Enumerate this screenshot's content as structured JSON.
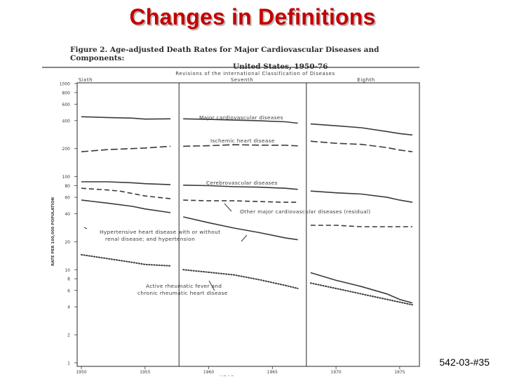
{
  "slide": {
    "title": "Changes in Definitions",
    "slide_number": "542-03-#35"
  },
  "figure": {
    "caption_line1": "Figure 2.  Age-adjusted Death Rates for Major Cardiovascular Diseases and Components:",
    "caption_line2": "United States, 1950-76"
  },
  "chart_data": {
    "type": "line",
    "title": "Figure 2. Age-adjusted Death Rates for Major Cardiovascular Diseases and Components: United States, 1950-76",
    "xlabel": "YEAR",
    "ylabel": "RATE PER 100,000 POPULATION",
    "yscale": "log",
    "ylim": [
      1,
      1000
    ],
    "xlim": [
      1950,
      1976
    ],
    "y_ticks": [
      "1000",
      "800",
      "600",
      "400",
      "200",
      "100",
      "80",
      "60",
      "40",
      "20",
      "10",
      "8",
      "6",
      "4",
      "2",
      "1"
    ],
    "y_tick_values": [
      1000,
      800,
      600,
      400,
      200,
      100,
      80,
      60,
      40,
      20,
      10,
      8,
      6,
      4,
      2,
      1
    ],
    "x_ticks": [
      "1950",
      "1955",
      "1960",
      "1965",
      "1970",
      "1975"
    ],
    "x_tick_values": [
      1950,
      1955,
      1960,
      1965,
      1970,
      1975
    ],
    "revisions_header": "Revisions of the International Classification of Diseases",
    "revisions": [
      {
        "label": "Sixth",
        "start": 1950,
        "end": 1958
      },
      {
        "label": "Seventh",
        "start": 1958,
        "end": 1968
      },
      {
        "label": "Eighth",
        "start": 1968,
        "end": 1976
      }
    ],
    "revision_boundaries": [
      1958,
      1968
    ],
    "grid": false,
    "series": [
      {
        "name": "Major cardiovascular diseases",
        "style": "solid",
        "segments": [
          [
            [
              1950,
              440
            ],
            [
              1952,
              432
            ],
            [
              1954,
              425
            ],
            [
              1955,
              415
            ],
            [
              1957,
              418
            ]
          ],
          [
            [
              1958,
              418
            ],
            [
              1960,
              412
            ],
            [
              1962,
              405
            ],
            [
              1964,
              398
            ],
            [
              1966,
              388
            ],
            [
              1967,
              375
            ]
          ],
          [
            [
              1968,
              368
            ],
            [
              1970,
              352
            ],
            [
              1972,
              335
            ],
            [
              1974,
              305
            ],
            [
              1975,
              290
            ],
            [
              1976,
              280
            ]
          ]
        ]
      },
      {
        "name": "Ischemic heart disease",
        "style": "longdash",
        "segments": [
          [
            [
              1950,
              185
            ],
            [
              1952,
              195
            ],
            [
              1954,
              200
            ],
            [
              1955,
              203
            ],
            [
              1957,
              212
            ]
          ],
          [
            [
              1958,
              212
            ],
            [
              1960,
              215
            ],
            [
              1962,
              220
            ],
            [
              1964,
              218
            ],
            [
              1966,
              217
            ],
            [
              1967,
              214
            ]
          ],
          [
            [
              1968,
              240
            ],
            [
              1970,
              228
            ],
            [
              1972,
              222
            ],
            [
              1974,
              205
            ],
            [
              1975,
              193
            ],
            [
              1976,
              185
            ]
          ]
        ]
      },
      {
        "name": "Cerebrovascular diseases",
        "style": "solid",
        "segments": [
          [
            [
              1950,
              88
            ],
            [
              1952,
              88
            ],
            [
              1954,
              86
            ],
            [
              1955,
              84
            ],
            [
              1957,
              82
            ]
          ],
          [
            [
              1958,
              81
            ],
            [
              1960,
              80
            ],
            [
              1962,
              78
            ],
            [
              1964,
              77
            ],
            [
              1966,
              75
            ],
            [
              1967,
              73
            ]
          ],
          [
            [
              1968,
              70
            ],
            [
              1970,
              67
            ],
            [
              1972,
              65
            ],
            [
              1974,
              60
            ],
            [
              1975,
              56
            ],
            [
              1976,
              53
            ]
          ]
        ]
      },
      {
        "name": "Other major cardiovascular diseases (residual)",
        "style": "dashed",
        "segments": [
          [
            [
              1950,
              75
            ],
            [
              1952,
              72
            ],
            [
              1953,
              70
            ],
            [
              1955,
              62
            ],
            [
              1957,
              58
            ]
          ],
          [
            [
              1958,
              56
            ],
            [
              1960,
              55
            ],
            [
              1962,
              55
            ],
            [
              1964,
              54
            ],
            [
              1966,
              53
            ],
            [
              1967,
              53
            ]
          ],
          [
            [
              1968,
              30
            ],
            [
              1970,
              30
            ],
            [
              1972,
              29
            ],
            [
              1974,
              29
            ],
            [
              1976,
              29
            ]
          ]
        ]
      },
      {
        "name": "Hypertensive heart disease with or without renal disease; and hypertension",
        "style": "solid",
        "segments": [
          [
            [
              1950,
              56
            ],
            [
              1952,
              52
            ],
            [
              1954,
              48
            ],
            [
              1955,
              45
            ],
            [
              1957,
              41
            ]
          ],
          [
            [
              1958,
              37
            ],
            [
              1960,
              32
            ],
            [
              1962,
              28
            ],
            [
              1964,
              25
            ],
            [
              1966,
              22
            ],
            [
              1967,
              21
            ]
          ],
          [
            [
              1968,
              9.3
            ],
            [
              1970,
              7.7
            ],
            [
              1972,
              6.6
            ],
            [
              1974,
              5.5
            ],
            [
              1975,
              4.8
            ],
            [
              1976,
              4.4
            ]
          ]
        ]
      },
      {
        "name": "Active rheumatic fever and chronic rheumatic heart disease",
        "style": "dotted",
        "segments": [
          [
            [
              1950,
              14.5
            ],
            [
              1952,
              13.2
            ],
            [
              1954,
              12
            ],
            [
              1955,
              11.4
            ],
            [
              1957,
              11
            ]
          ],
          [
            [
              1958,
              10
            ],
            [
              1960,
              9.4
            ],
            [
              1962,
              8.8
            ],
            [
              1964,
              7.8
            ],
            [
              1966,
              6.8
            ],
            [
              1967,
              6.3
            ]
          ],
          [
            [
              1968,
              7.2
            ],
            [
              1970,
              6.3
            ],
            [
              1972,
              5.5
            ],
            [
              1974,
              4.8
            ],
            [
              1976,
              4.2
            ]
          ]
        ]
      }
    ],
    "annotations": [
      {
        "text": "Major cardiovascular diseases",
        "series": "Major cardiovascular diseases"
      },
      {
        "text": "Ischemic heart disease",
        "series": "Ischemic heart disease"
      },
      {
        "text": "Cerebrovascular diseases",
        "series": "Cerebrovascular diseases"
      },
      {
        "text": "Other major cardiovascular diseases (residual)",
        "series": "Other major cardiovascular diseases (residual)"
      },
      {
        "text": "Hypertensive heart disease with or without",
        "series": "Hypertensive heart disease with or without renal disease; and hypertension"
      },
      {
        "text": "renal disease; and hypertension",
        "series": "Hypertensive heart disease with or without renal disease; and hypertension"
      },
      {
        "text": "Active rheumatic fever and",
        "series": "Active rheumatic fever and chronic rheumatic heart disease"
      },
      {
        "text": "chronic rheumatic heart disease",
        "series": "Active rheumatic fever and chronic rheumatic heart disease"
      }
    ]
  }
}
